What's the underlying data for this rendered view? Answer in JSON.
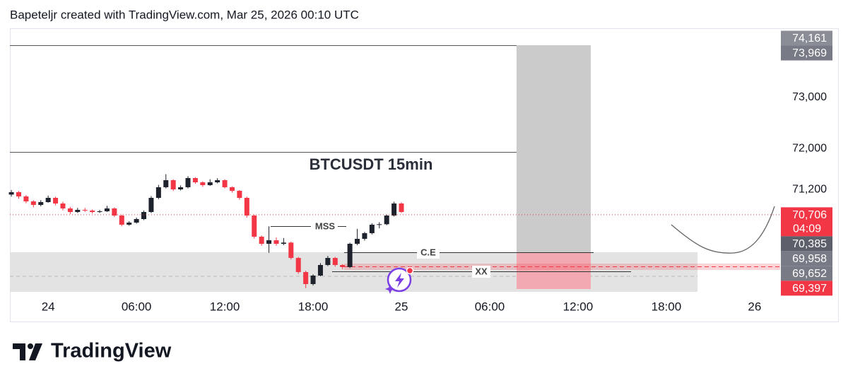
{
  "header": {
    "text": "Bapeteljr created with TradingView.com, Mar 25, 2026 00:10 UTC"
  },
  "chart_data": {
    "type": "candlestick",
    "title": "BTCUSDT 15min",
    "x": [
      -2.5,
      -2,
      -1.5,
      -1,
      -0.5,
      0,
      0.5,
      1,
      1.5,
      2,
      2.5,
      3,
      3.5,
      4,
      4.5,
      5,
      5.5,
      6,
      6.5,
      7,
      7.5,
      8,
      8.5,
      9,
      9.5,
      10,
      10.5,
      11,
      11.5,
      12,
      12.5,
      13,
      13.5,
      14,
      14.5,
      15,
      15.5,
      16,
      16.5,
      17,
      17.5,
      18,
      18.5,
      19,
      19.5,
      20,
      20.5,
      21,
      21.5,
      22,
      22.5,
      23,
      23.5,
      24
    ],
    "open": [
      71100,
      71147,
      71064,
      70967,
      70898,
      70953,
      71036,
      70926,
      70829,
      70759,
      70801,
      70787,
      70759,
      70773,
      70829,
      70690,
      70511,
      70552,
      70621,
      70759,
      71036,
      71244,
      71382,
      71202,
      71244,
      71423,
      71340,
      71285,
      71340,
      71382,
      71244,
      71174,
      71036,
      70690,
      70276,
      70137,
      70206,
      70137,
      70160,
      69860,
      69584,
      69349,
      69515,
      69722,
      69860,
      69722,
      69681,
      70137,
      70234,
      70345,
      70511,
      70520,
      70690,
      70926
    ],
    "high": [
      71190,
      71170,
      71090,
      70990,
      70990,
      71080,
      71060,
      70960,
      70860,
      70840,
      70840,
      70810,
      70800,
      70880,
      70850,
      70710,
      70580,
      70650,
      70790,
      71070,
      71290,
      71500,
      71400,
      71280,
      71460,
      71440,
      71360,
      71400,
      71420,
      71400,
      71260,
      71190,
      71060,
      70710,
      70300,
      70480,
      70260,
      70250,
      70180,
      69880,
      69610,
      69540,
      69760,
      69900,
      69880,
      69740,
      70160,
      70430,
      70370,
      70540,
      70560,
      70710,
      70960,
      70950
    ],
    "low": [
      71060,
      71020,
      70930,
      70850,
      70870,
      70940,
      70890,
      70790,
      70720,
      70740,
      70760,
      70730,
      70740,
      70760,
      70660,
      70480,
      70490,
      70530,
      70600,
      70740,
      71010,
      71220,
      71170,
      71180,
      71220,
      71310,
      71250,
      71270,
      71320,
      71220,
      71140,
      71000,
      70650,
      70240,
      70100,
      69960,
      70100,
      70110,
      69830,
      69550,
      69270,
      69320,
      69500,
      69700,
      69690,
      69640,
      69660,
      70110,
      70200,
      70320,
      70440,
      70500,
      70670,
      70740
    ],
    "close": [
      71147,
      71064,
      70967,
      70898,
      70953,
      71036,
      70926,
      70829,
      70759,
      70801,
      70787,
      70759,
      70773,
      70829,
      70690,
      70511,
      70552,
      70621,
      70759,
      71036,
      71244,
      71382,
      71202,
      71244,
      71423,
      71340,
      71285,
      71340,
      71382,
      71244,
      71174,
      71036,
      70690,
      70276,
      70137,
      70206,
      70137,
      70160,
      69860,
      69584,
      69349,
      69515,
      69722,
      69860,
      69722,
      69681,
      70137,
      70234,
      70345,
      70511,
      70520,
      70690,
      70926,
      70759
    ],
    "up_color": "#1e222d",
    "down_color": "#f23645",
    "xlim": [
      -2.6,
      49.35
    ],
    "xticks": [
      {
        "value": 0,
        "label": "24"
      },
      {
        "value": 6,
        "label": "06:00"
      },
      {
        "value": 12,
        "label": "12:00"
      },
      {
        "value": 18,
        "label": "18:00"
      },
      {
        "value": 24,
        "label": "25"
      },
      {
        "value": 30,
        "label": "06:00"
      },
      {
        "value": 36,
        "label": "12:00"
      },
      {
        "value": 42,
        "label": "18:00"
      },
      {
        "value": 48,
        "label": "26"
      }
    ],
    "ylim": [
      69169,
      74355
    ],
    "yticks": [
      {
        "value": 73000,
        "label": "73,000"
      },
      {
        "value": 72000,
        "label": "72,000"
      },
      {
        "value": 71200,
        "label": "71,200"
      }
    ],
    "price_labels": [
      {
        "value": 74161,
        "label": "74,161",
        "color": "#8a8d96"
      },
      {
        "value": 73969,
        "label": "73,969",
        "color": "#787b86"
      },
      {
        "value": 70706,
        "label": "70,706",
        "color": "#f23645",
        "countdown": "04:09"
      },
      {
        "value": 70385,
        "label": "70,385",
        "color": "#5d606b"
      },
      {
        "value": 69958,
        "label": "69,958",
        "color": "#787b86"
      },
      {
        "value": 69652,
        "label": "69,652",
        "color": "#787b86"
      },
      {
        "value": 69397,
        "label": "69,397",
        "color": "#f23645"
      }
    ],
    "annotations": [
      "MSS",
      "C.E",
      "XX"
    ]
  },
  "logo": {
    "text": "TradingView"
  }
}
